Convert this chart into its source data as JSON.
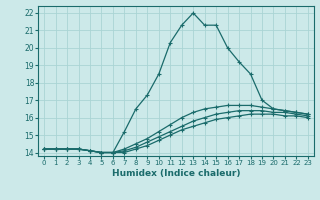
{
  "xlabel": "Humidex (Indice chaleur)",
  "ylabel": "",
  "bg_color": "#cce9e9",
  "line_color": "#1a6b6b",
  "grid_color": "#aad4d4",
  "xlim": [
    -0.5,
    23.5
  ],
  "ylim": [
    13.8,
    22.4
  ],
  "yticks": [
    14,
    15,
    16,
    17,
    18,
    19,
    20,
    21,
    22
  ],
  "xticks": [
    0,
    1,
    2,
    3,
    4,
    5,
    6,
    7,
    8,
    9,
    10,
    11,
    12,
    13,
    14,
    15,
    16,
    17,
    18,
    19,
    20,
    21,
    22,
    23
  ],
  "line1_x": [
    0,
    1,
    2,
    3,
    4,
    5,
    6,
    7,
    8,
    9,
    10,
    11,
    12,
    13,
    14,
    15,
    16,
    17,
    18,
    19,
    20,
    21,
    22,
    23
  ],
  "line1_y": [
    14.2,
    14.2,
    14.2,
    14.2,
    14.1,
    14.0,
    14.0,
    15.2,
    16.5,
    17.3,
    18.5,
    20.3,
    21.3,
    22.0,
    21.3,
    21.3,
    20.0,
    19.2,
    18.5,
    17.0,
    16.5,
    16.4,
    16.3,
    16.2
  ],
  "line2_x": [
    0,
    1,
    2,
    3,
    4,
    5,
    6,
    7,
    8,
    9,
    10,
    11,
    12,
    13,
    14,
    15,
    16,
    17,
    18,
    19,
    20,
    21,
    22,
    23
  ],
  "line2_y": [
    14.2,
    14.2,
    14.2,
    14.2,
    14.1,
    14.0,
    14.0,
    14.2,
    14.5,
    14.8,
    15.2,
    15.6,
    16.0,
    16.3,
    16.5,
    16.6,
    16.7,
    16.7,
    16.7,
    16.6,
    16.5,
    16.4,
    16.3,
    16.2
  ],
  "line3_x": [
    0,
    1,
    2,
    3,
    4,
    5,
    6,
    7,
    8,
    9,
    10,
    11,
    12,
    13,
    14,
    15,
    16,
    17,
    18,
    19,
    20,
    21,
    22,
    23
  ],
  "line3_y": [
    14.2,
    14.2,
    14.2,
    14.2,
    14.1,
    14.0,
    14.0,
    14.1,
    14.3,
    14.6,
    14.9,
    15.2,
    15.5,
    15.8,
    16.0,
    16.2,
    16.3,
    16.4,
    16.4,
    16.4,
    16.3,
    16.3,
    16.2,
    16.1
  ],
  "line4_x": [
    0,
    1,
    2,
    3,
    4,
    5,
    6,
    7,
    8,
    9,
    10,
    11,
    12,
    13,
    14,
    15,
    16,
    17,
    18,
    19,
    20,
    21,
    22,
    23
  ],
  "line4_y": [
    14.2,
    14.2,
    14.2,
    14.2,
    14.1,
    14.0,
    14.0,
    14.0,
    14.2,
    14.4,
    14.7,
    15.0,
    15.3,
    15.5,
    15.7,
    15.9,
    16.0,
    16.1,
    16.2,
    16.2,
    16.2,
    16.1,
    16.1,
    16.0
  ]
}
